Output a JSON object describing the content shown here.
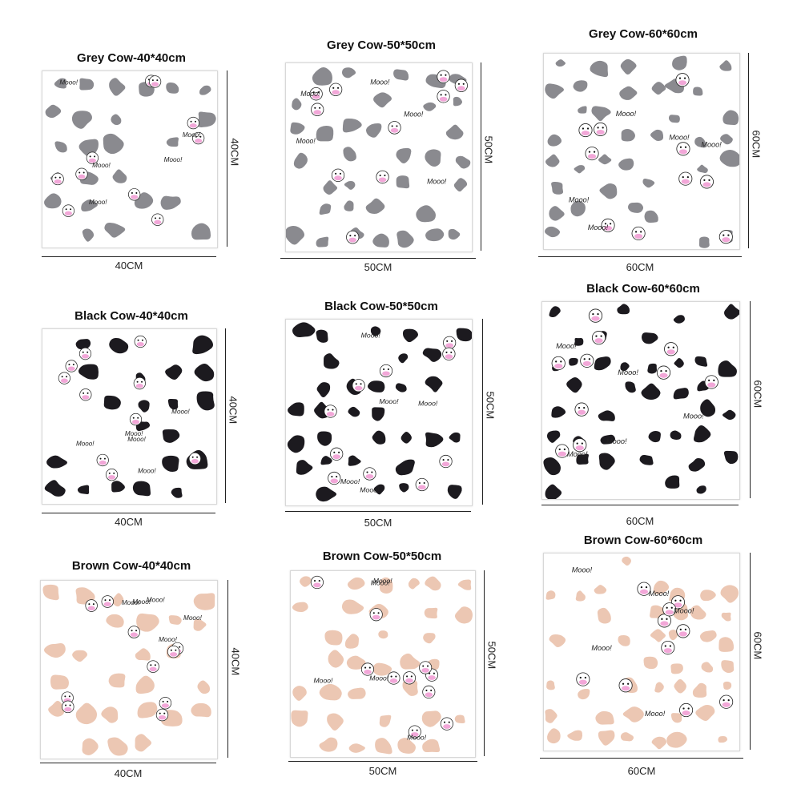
{
  "products": [
    {
      "title": "Grey Cow-40*40cm",
      "width_label": "40CM",
      "height_label": "40CM",
      "spot_color": "#8a8a8f"
    },
    {
      "title": "Grey Cow-50*50cm",
      "width_label": "50CM",
      "height_label": "50CM",
      "spot_color": "#8a8a8f"
    },
    {
      "title": "Grey Cow-60*60cm",
      "width_label": "60CM",
      "height_label": "60CM",
      "spot_color": "#8a8a8f"
    },
    {
      "title": "Black Cow-40*40cm",
      "width_label": "40CM",
      "height_label": "40CM",
      "spot_color": "#1c1a1f"
    },
    {
      "title": "Black Cow-50*50cm",
      "width_label": "50CM",
      "height_label": "50CM",
      "spot_color": "#1c1a1f"
    },
    {
      "title": "Black Cow-60*60cm",
      "width_label": "60CM",
      "height_label": "60CM",
      "spot_color": "#1c1a1f"
    },
    {
      "title": "Brown Cow-40*40cm",
      "width_label": "40CM",
      "height_label": "40CM",
      "spot_color": "#ecc7b3"
    },
    {
      "title": "Brown Cow-50*50cm",
      "width_label": "50CM",
      "height_label": "50CM",
      "spot_color": "#ecc7b3"
    },
    {
      "title": "Brown Cow-60*60cm",
      "width_label": "60CM",
      "height_label": "60CM",
      "spot_color": "#ecc7b3"
    }
  ],
  "pattern": {
    "text": "Mooo!",
    "face_pink": "#f2a7d8",
    "face_outline": "#222222"
  }
}
